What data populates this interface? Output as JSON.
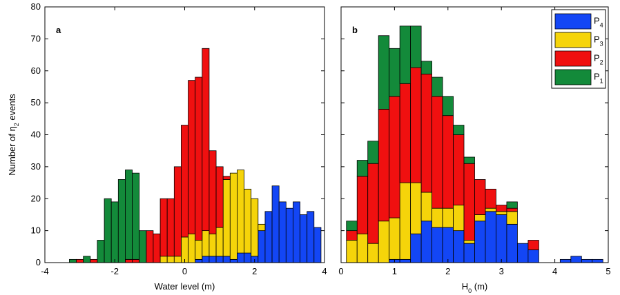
{
  "chart_data": [
    {
      "type": "histogram",
      "title": "a",
      "xlabel": "Water level (m)",
      "ylabel": "Number of η2 events",
      "bins": [
        -3.3,
        -3.1,
        -2.9,
        -2.7,
        -2.5,
        -2.3,
        -2.1,
        -1.9,
        -1.7,
        -1.5,
        -1.3,
        -1.1,
        -0.9,
        -0.7,
        -0.5,
        -0.3,
        -0.1,
        0.1,
        0.3,
        0.5,
        0.7,
        0.9,
        1.1,
        1.3,
        1.5,
        1.7,
        1.9,
        2.1,
        2.3,
        2.5,
        2.7,
        2.9,
        3.1,
        3.3,
        3.5,
        3.7,
        3.9
      ],
      "stacked": true,
      "series": [
        {
          "color": "#1346f5",
          "values": [
            0,
            0,
            0,
            0,
            0,
            0,
            0,
            0,
            0,
            0,
            0,
            0,
            0,
            0,
            0,
            0,
            0,
            0,
            1,
            2,
            2,
            2,
            2,
            1,
            3,
            3,
            2,
            10,
            16,
            24,
            19,
            17,
            19,
            15,
            16,
            11
          ]
        },
        {
          "color": "#f5d40a",
          "values": [
            0,
            0,
            0,
            0,
            0,
            0,
            0,
            0,
            0,
            0,
            0,
            0,
            0,
            2,
            2,
            2,
            8,
            9,
            6,
            8,
            7,
            9,
            24,
            27,
            26,
            20,
            18,
            2,
            0,
            0,
            0,
            0,
            0,
            0,
            0,
            0
          ]
        },
        {
          "color": "#f01010",
          "values": [
            0,
            1,
            0,
            1,
            0,
            0,
            0,
            0,
            1,
            1,
            0,
            10,
            9,
            18,
            18,
            28,
            35,
            48,
            51,
            57,
            26,
            19,
            1,
            0,
            0,
            0,
            0,
            0,
            0,
            0,
            0,
            0,
            0,
            0,
            0,
            0
          ]
        },
        {
          "color": "#138a3a",
          "values": [
            1,
            0,
            2,
            0,
            7,
            20,
            19,
            26,
            28,
            27,
            10,
            0,
            0,
            0,
            0,
            0,
            0,
            0,
            0,
            0,
            0,
            0,
            0,
            0,
            0,
            0,
            0,
            0,
            0,
            0,
            0,
            0,
            0,
            0,
            0,
            0
          ]
        }
      ],
      "xlim": [
        -4,
        4
      ],
      "xticks": [
        -4,
        -2,
        0,
        2,
        4
      ],
      "ylim": [
        0,
        80
      ],
      "yticks": [
        0,
        10,
        20,
        30,
        40,
        50,
        60,
        70,
        80
      ],
      "ytick_labels": true
    },
    {
      "type": "histogram",
      "title": "b",
      "xlabel": "H0 (m)",
      "bins": [
        0.1,
        0.3,
        0.5,
        0.7,
        0.9,
        1.1,
        1.3,
        1.5,
        1.7,
        1.9,
        2.1,
        2.3,
        2.5,
        2.7,
        2.9,
        3.1,
        3.3,
        3.5,
        3.7,
        3.9,
        4.1,
        4.3,
        4.5,
        4.7,
        4.9
      ],
      "stacked": true,
      "series": [
        {
          "name": "P4",
          "color": "#1346f5",
          "values": [
            0,
            0,
            0,
            0,
            1,
            1,
            9,
            13,
            11,
            11,
            10,
            6,
            13,
            16,
            15,
            12,
            6,
            4,
            0,
            0,
            1,
            2,
            1,
            1
          ]
        },
        {
          "name": "P3",
          "color": "#f5d40a",
          "values": [
            7,
            9,
            6,
            13,
            13,
            24,
            16,
            9,
            6,
            6,
            8,
            1,
            2,
            1,
            1,
            4,
            0,
            0,
            0,
            0,
            0,
            0,
            0,
            0
          ]
        },
        {
          "name": "P2",
          "color": "#f01010",
          "values": [
            3,
            18,
            25,
            35,
            38,
            31,
            36,
            37,
            35,
            29,
            22,
            24,
            11,
            6,
            2,
            1,
            0,
            3,
            0,
            0,
            0,
            0,
            0,
            0
          ]
        },
        {
          "name": "P1",
          "color": "#138a3a",
          "values": [
            3,
            5,
            7,
            23,
            15,
            18,
            13,
            4,
            6,
            6,
            3,
            2,
            0,
            0,
            0,
            2,
            0,
            0,
            0,
            0,
            0,
            0,
            0,
            0
          ]
        }
      ],
      "legend": "upper right",
      "xlim": [
        0,
        5
      ],
      "xticks": [
        0,
        1,
        2,
        3,
        4,
        5
      ],
      "ylim": [
        0,
        80
      ],
      "yticks": [
        0,
        10,
        20,
        30,
        40,
        50,
        60,
        70,
        80
      ],
      "ytick_labels": false
    }
  ]
}
